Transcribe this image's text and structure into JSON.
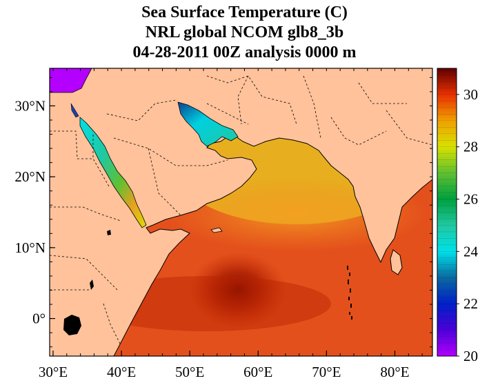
{
  "title": {
    "line1": "Sea Surface Temperature (C)",
    "line2": "NRL global NCOM glb8_3b",
    "line3": "04-28-2011 00Z analysis   0000 m"
  },
  "axes": {
    "lon_ticks": [
      {
        "value": 30,
        "label": "30°E"
      },
      {
        "value": 40,
        "label": "40°E"
      },
      {
        "value": 50,
        "label": "50°E"
      },
      {
        "value": 60,
        "label": "60°E"
      },
      {
        "value": 70,
        "label": "70°E"
      },
      {
        "value": 80,
        "label": "80°E"
      }
    ],
    "lat_ticks": [
      {
        "value": 30,
        "label": "30°N"
      },
      {
        "value": 20,
        "label": "20°N"
      },
      {
        "value": 10,
        "label": "10°N"
      },
      {
        "value": 0,
        "label": "0°"
      }
    ],
    "lon_range": [
      29.5,
      85.5
    ],
    "lat_range": [
      -5.3,
      35.3
    ]
  },
  "colorbar": {
    "min": 20,
    "max": 31,
    "ticks": [
      {
        "value": 20,
        "label": "20"
      },
      {
        "value": 22,
        "label": "22"
      },
      {
        "value": 24,
        "label": "24"
      },
      {
        "value": 26,
        "label": "26"
      },
      {
        "value": 28,
        "label": "28"
      },
      {
        "value": 30,
        "label": "30"
      }
    ],
    "stops": [
      {
        "value": 20,
        "color": "#b400ff"
      },
      {
        "value": 21,
        "color": "#4b00d8"
      },
      {
        "value": 22,
        "color": "#0020c8"
      },
      {
        "value": 23,
        "color": "#0a6aa0"
      },
      {
        "value": 24,
        "color": "#00e0e8"
      },
      {
        "value": 25,
        "color": "#20c8a0"
      },
      {
        "value": 26,
        "color": "#00a040"
      },
      {
        "value": 27,
        "color": "#60c030"
      },
      {
        "value": 28,
        "color": "#d8e000"
      },
      {
        "value": 29,
        "color": "#f0a000"
      },
      {
        "value": 30,
        "color": "#e83000"
      },
      {
        "value": 31,
        "color": "#600000"
      }
    ]
  },
  "colors": {
    "land": "#ffc29b",
    "ocean_base": "#e4501c",
    "border": "#000000"
  }
}
